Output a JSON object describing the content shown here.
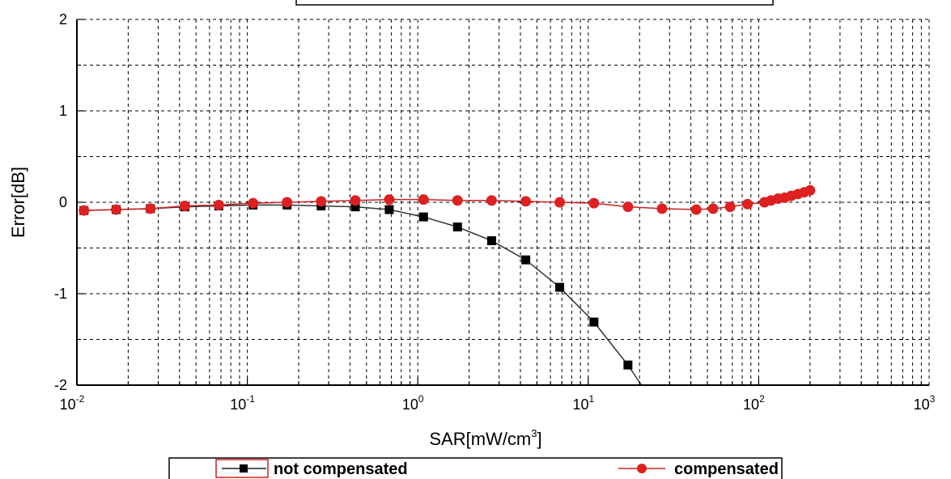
{
  "chart_data": {
    "type": "line",
    "title": "",
    "xlabel": "SAR[mW/cm",
    "xlabel_exponent": "3",
    "xlabel_suffix": "]",
    "ylabel": "Error[dB]",
    "x_scale": "log",
    "xlim": [
      0.01,
      1000
    ],
    "ylim": [
      -2,
      2
    ],
    "x_ticks": [
      {
        "value": 0.01,
        "base": "10",
        "exp": "-2"
      },
      {
        "value": 0.1,
        "base": "10",
        "exp": "-1"
      },
      {
        "value": 1,
        "base": "10",
        "exp": "0"
      },
      {
        "value": 10,
        "base": "10",
        "exp": "1"
      },
      {
        "value": 100,
        "base": "10",
        "exp": "2"
      },
      {
        "value": 1000,
        "base": "10",
        "exp": "3"
      }
    ],
    "y_ticks": [
      {
        "value": 2,
        "label": "2"
      },
      {
        "value": 1,
        "label": "1"
      },
      {
        "value": 0,
        "label": "0"
      },
      {
        "value": -1,
        "label": "-1"
      },
      {
        "value": -2,
        "label": "-2"
      }
    ],
    "grid": true,
    "legend_position": "bottom",
    "series": [
      {
        "name": "not compensated",
        "color": "#000000",
        "line_color": "#333333",
        "marker": "square",
        "x": [
          0.011,
          0.017,
          0.027,
          0.043,
          0.068,
          0.108,
          0.171,
          0.271,
          0.43,
          0.68,
          1.08,
          1.71,
          2.71,
          4.3,
          6.8,
          10.8,
          17.1
        ],
        "y": [
          -0.09,
          -0.08,
          -0.07,
          -0.05,
          -0.04,
          -0.03,
          -0.03,
          -0.04,
          -0.05,
          -0.08,
          -0.16,
          -0.27,
          -0.42,
          -0.63,
          -0.93,
          -1.31,
          -1.78
        ],
        "line_extends_to": {
          "x": 20.5,
          "y": -2.0
        }
      },
      {
        "name": "compensated",
        "color": "#dd2020",
        "line_color": "#cc2222",
        "marker": "circle",
        "x": [
          0.011,
          0.017,
          0.027,
          0.043,
          0.068,
          0.108,
          0.171,
          0.271,
          0.43,
          0.68,
          1.08,
          1.71,
          2.71,
          4.3,
          6.8,
          10.8,
          17.1,
          27.1,
          43,
          54,
          68,
          86,
          108,
          118,
          130,
          142,
          155,
          170,
          185,
          200
        ],
        "y": [
          -0.09,
          -0.08,
          -0.07,
          -0.04,
          -0.03,
          -0.01,
          0.0,
          0.01,
          0.02,
          0.03,
          0.03,
          0.02,
          0.02,
          0.01,
          0.0,
          -0.01,
          -0.05,
          -0.07,
          -0.08,
          -0.07,
          -0.05,
          -0.02,
          0.0,
          0.02,
          0.04,
          0.05,
          0.07,
          0.09,
          0.11,
          0.13
        ]
      }
    ]
  },
  "legend": {
    "items": [
      {
        "label": "not compensated"
      },
      {
        "label": "compensated"
      }
    ]
  }
}
